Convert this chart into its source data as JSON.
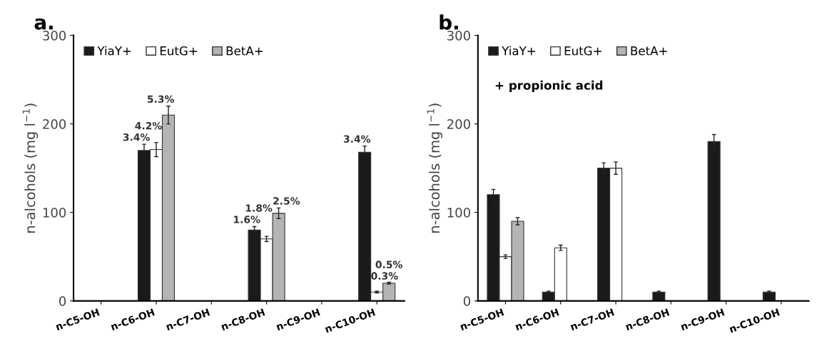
{
  "chart_data": [
    {
      "type": "bar",
      "title": "a.",
      "ylabel": "n-alcohols (mg l$^{−1}$)",
      "categories": [
        "n-C5-OH",
        "n-C6-OH",
        "n-C7-OH",
        "n-C8-OH",
        "n-C9-OH",
        "n-C10-OH"
      ],
      "ylim": [
        0,
        300
      ],
      "yticks": [
        0,
        100,
        200,
        300
      ],
      "grid": false,
      "legend": "top left",
      "annotations": [
        "3.4%",
        "4.2%",
        "5.3%",
        "1.6%",
        "1.8%",
        "2.5%",
        "3.4%",
        "0.3%",
        "0.5%"
      ],
      "series": [
        {
          "name": "YiaY+",
          "color": "#1a1a1a",
          "values": [
            null,
            170,
            null,
            80,
            null,
            168
          ],
          "errors": [
            null,
            7,
            null,
            4,
            null,
            7
          ]
        },
        {
          "name": "EutG+",
          "color": "#ffffff",
          "values": [
            null,
            171,
            null,
            70,
            null,
            10
          ],
          "errors": [
            null,
            8,
            null,
            3,
            null,
            1
          ]
        },
        {
          "name": "BetA+",
          "color": "#b4b4b4",
          "values": [
            null,
            210,
            null,
            99,
            null,
            20
          ],
          "errors": [
            null,
            10,
            null,
            6,
            null,
            1
          ]
        }
      ]
    },
    {
      "type": "bar",
      "title": "b.",
      "ylabel": "n-alcohols (mg l$^{−1}$)",
      "categories": [
        "n-C5-OH",
        "n-C6-OH",
        "n-C7-OH",
        "n-C8-OH",
        "n-C9-OH",
        "n-C10-OH"
      ],
      "ylim": [
        0,
        300
      ],
      "yticks": [
        0,
        100,
        200,
        300
      ],
      "grid": false,
      "legend": "top left",
      "annotations": [
        "+ propionic acid"
      ],
      "series": [
        {
          "name": "YiaY+",
          "color": "#1a1a1a",
          "values": [
            120,
            10,
            150,
            10,
            180,
            10
          ],
          "errors": [
            6,
            1,
            6,
            1,
            8,
            1
          ]
        },
        {
          "name": "EutG+",
          "color": "#ffffff",
          "values": [
            50,
            60,
            150,
            null,
            null,
            null
          ],
          "errors": [
            2,
            3,
            7,
            null,
            null,
            null
          ]
        },
        {
          "name": "BetA+",
          "color": "#b4b4b4",
          "values": [
            90,
            null,
            null,
            null,
            null,
            null
          ],
          "errors": [
            4,
            null,
            null,
            null,
            null,
            null
          ]
        }
      ]
    }
  ]
}
